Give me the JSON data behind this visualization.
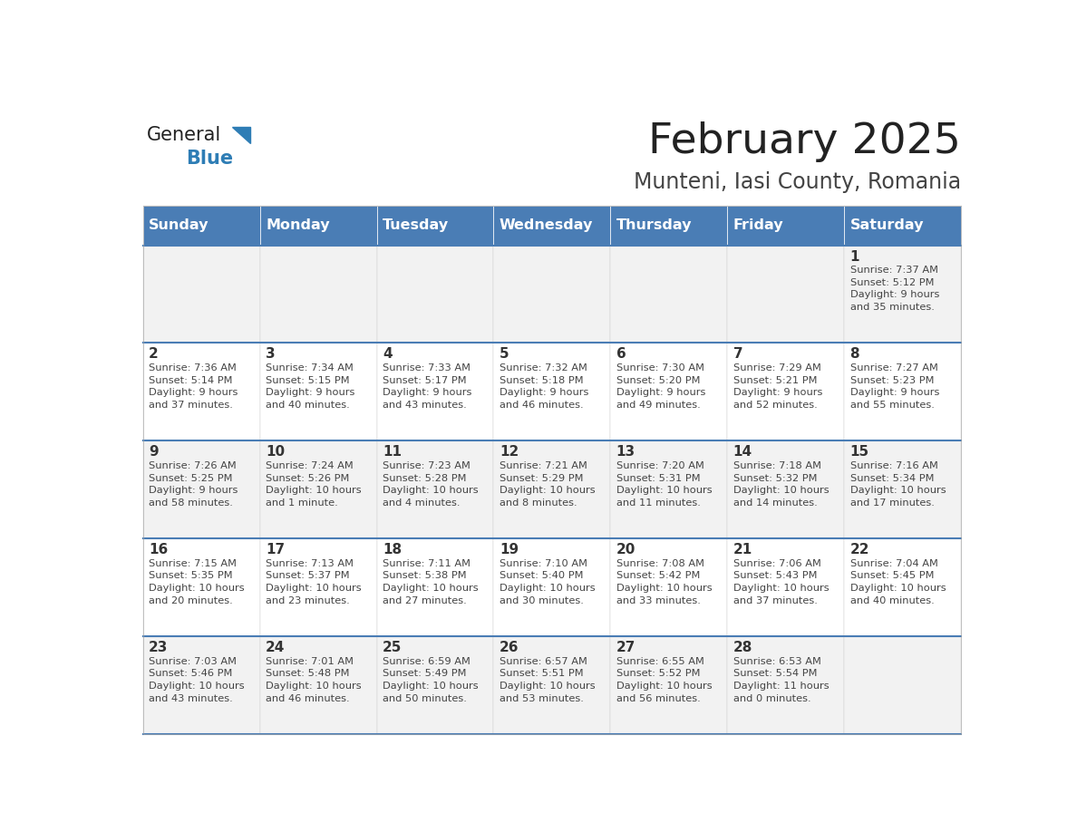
{
  "title": "February 2025",
  "subtitle": "Munteni, Iasi County, Romania",
  "header_bg": "#4A7DB5",
  "header_text": "#FFFFFF",
  "cell_bg_even": "#F2F2F2",
  "cell_bg_odd": "#FFFFFF",
  "day_names": [
    "Sunday",
    "Monday",
    "Tuesday",
    "Wednesday",
    "Thursday",
    "Friday",
    "Saturday"
  ],
  "title_color": "#222222",
  "subtitle_color": "#444444",
  "day_number_color": "#333333",
  "info_color": "#444444",
  "logo_general_color": "#222222",
  "logo_blue_color": "#2E7DB5",
  "weeks": [
    [
      {
        "day": "",
        "info": ""
      },
      {
        "day": "",
        "info": ""
      },
      {
        "day": "",
        "info": ""
      },
      {
        "day": "",
        "info": ""
      },
      {
        "day": "",
        "info": ""
      },
      {
        "day": "",
        "info": ""
      },
      {
        "day": "1",
        "info": "Sunrise: 7:37 AM\nSunset: 5:12 PM\nDaylight: 9 hours\nand 35 minutes."
      }
    ],
    [
      {
        "day": "2",
        "info": "Sunrise: 7:36 AM\nSunset: 5:14 PM\nDaylight: 9 hours\nand 37 minutes."
      },
      {
        "day": "3",
        "info": "Sunrise: 7:34 AM\nSunset: 5:15 PM\nDaylight: 9 hours\nand 40 minutes."
      },
      {
        "day": "4",
        "info": "Sunrise: 7:33 AM\nSunset: 5:17 PM\nDaylight: 9 hours\nand 43 minutes."
      },
      {
        "day": "5",
        "info": "Sunrise: 7:32 AM\nSunset: 5:18 PM\nDaylight: 9 hours\nand 46 minutes."
      },
      {
        "day": "6",
        "info": "Sunrise: 7:30 AM\nSunset: 5:20 PM\nDaylight: 9 hours\nand 49 minutes."
      },
      {
        "day": "7",
        "info": "Sunrise: 7:29 AM\nSunset: 5:21 PM\nDaylight: 9 hours\nand 52 minutes."
      },
      {
        "day": "8",
        "info": "Sunrise: 7:27 AM\nSunset: 5:23 PM\nDaylight: 9 hours\nand 55 minutes."
      }
    ],
    [
      {
        "day": "9",
        "info": "Sunrise: 7:26 AM\nSunset: 5:25 PM\nDaylight: 9 hours\nand 58 minutes."
      },
      {
        "day": "10",
        "info": "Sunrise: 7:24 AM\nSunset: 5:26 PM\nDaylight: 10 hours\nand 1 minute."
      },
      {
        "day": "11",
        "info": "Sunrise: 7:23 AM\nSunset: 5:28 PM\nDaylight: 10 hours\nand 4 minutes."
      },
      {
        "day": "12",
        "info": "Sunrise: 7:21 AM\nSunset: 5:29 PM\nDaylight: 10 hours\nand 8 minutes."
      },
      {
        "day": "13",
        "info": "Sunrise: 7:20 AM\nSunset: 5:31 PM\nDaylight: 10 hours\nand 11 minutes."
      },
      {
        "day": "14",
        "info": "Sunrise: 7:18 AM\nSunset: 5:32 PM\nDaylight: 10 hours\nand 14 minutes."
      },
      {
        "day": "15",
        "info": "Sunrise: 7:16 AM\nSunset: 5:34 PM\nDaylight: 10 hours\nand 17 minutes."
      }
    ],
    [
      {
        "day": "16",
        "info": "Sunrise: 7:15 AM\nSunset: 5:35 PM\nDaylight: 10 hours\nand 20 minutes."
      },
      {
        "day": "17",
        "info": "Sunrise: 7:13 AM\nSunset: 5:37 PM\nDaylight: 10 hours\nand 23 minutes."
      },
      {
        "day": "18",
        "info": "Sunrise: 7:11 AM\nSunset: 5:38 PM\nDaylight: 10 hours\nand 27 minutes."
      },
      {
        "day": "19",
        "info": "Sunrise: 7:10 AM\nSunset: 5:40 PM\nDaylight: 10 hours\nand 30 minutes."
      },
      {
        "day": "20",
        "info": "Sunrise: 7:08 AM\nSunset: 5:42 PM\nDaylight: 10 hours\nand 33 minutes."
      },
      {
        "day": "21",
        "info": "Sunrise: 7:06 AM\nSunset: 5:43 PM\nDaylight: 10 hours\nand 37 minutes."
      },
      {
        "day": "22",
        "info": "Sunrise: 7:04 AM\nSunset: 5:45 PM\nDaylight: 10 hours\nand 40 minutes."
      }
    ],
    [
      {
        "day": "23",
        "info": "Sunrise: 7:03 AM\nSunset: 5:46 PM\nDaylight: 10 hours\nand 43 minutes."
      },
      {
        "day": "24",
        "info": "Sunrise: 7:01 AM\nSunset: 5:48 PM\nDaylight: 10 hours\nand 46 minutes."
      },
      {
        "day": "25",
        "info": "Sunrise: 6:59 AM\nSunset: 5:49 PM\nDaylight: 10 hours\nand 50 minutes."
      },
      {
        "day": "26",
        "info": "Sunrise: 6:57 AM\nSunset: 5:51 PM\nDaylight: 10 hours\nand 53 minutes."
      },
      {
        "day": "27",
        "info": "Sunrise: 6:55 AM\nSunset: 5:52 PM\nDaylight: 10 hours\nand 56 minutes."
      },
      {
        "day": "28",
        "info": "Sunrise: 6:53 AM\nSunset: 5:54 PM\nDaylight: 11 hours\nand 0 minutes."
      },
      {
        "day": "",
        "info": ""
      }
    ]
  ]
}
